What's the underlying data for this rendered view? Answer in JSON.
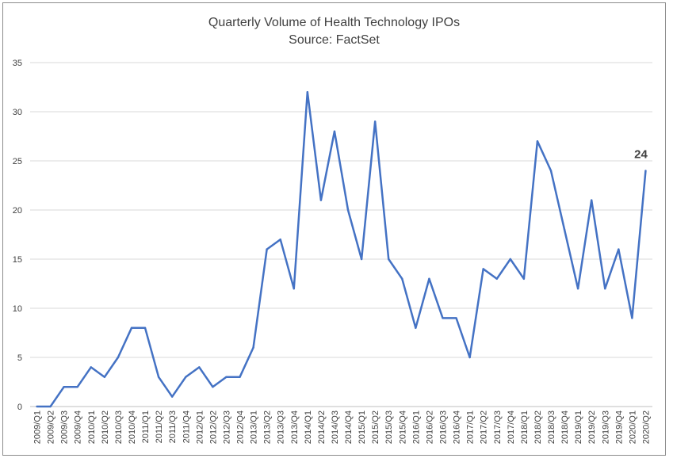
{
  "chart_data": {
    "type": "line",
    "title": "Quarterly Volume of Health Technology IPOs",
    "subtitle": "Source: FactSet",
    "xlabel": "",
    "ylabel": "",
    "ylim": [
      0,
      35
    ],
    "yticks": [
      0,
      5,
      10,
      15,
      20,
      25,
      30,
      35
    ],
    "grid": true,
    "legend": "none",
    "line_color": "#4472C4",
    "categories": [
      "2009/Q1",
      "2009/Q2",
      "2009/Q3",
      "2009/Q4",
      "2010/Q1",
      "2010/Q2",
      "2010/Q3",
      "2010/Q4",
      "2011/Q1",
      "2011/Q2",
      "2011/Q3",
      "2011/Q4",
      "2012/Q1",
      "2012/Q2",
      "2012/Q3",
      "2012/Q4",
      "2013/Q1",
      "2013/Q2",
      "2013/Q3",
      "2013/Q4",
      "2014/Q1",
      "2014/Q2",
      "2014/Q3",
      "2014/Q4",
      "2015/Q1",
      "2015/Q2",
      "2015/Q3",
      "2015/Q4",
      "2016/Q1",
      "2016/Q2",
      "2016/Q3",
      "2016/Q4",
      "2017/Q1",
      "2017/Q2",
      "2017/Q3",
      "2017/Q4",
      "2018/Q1",
      "2018/Q2",
      "2018/Q3",
      "2018/Q4",
      "2019/Q1",
      "2019/Q2",
      "2019/Q3",
      "2019/Q4",
      "2020/Q1",
      "2020/Q2"
    ],
    "series": [
      {
        "values": [
          0,
          0,
          2,
          2,
          4,
          3,
          5,
          8,
          8,
          3,
          1,
          3,
          4,
          2,
          3,
          3,
          6,
          16,
          17,
          12,
          32,
          21,
          28,
          20,
          15,
          29,
          15,
          13,
          8,
          13,
          9,
          9,
          5,
          14,
          13,
          15,
          13,
          27,
          24,
          18,
          12,
          21,
          12,
          16,
          9,
          24
        ]
      }
    ],
    "annotations": [
      {
        "category": "2020/Q2",
        "text": "24"
      }
    ]
  }
}
